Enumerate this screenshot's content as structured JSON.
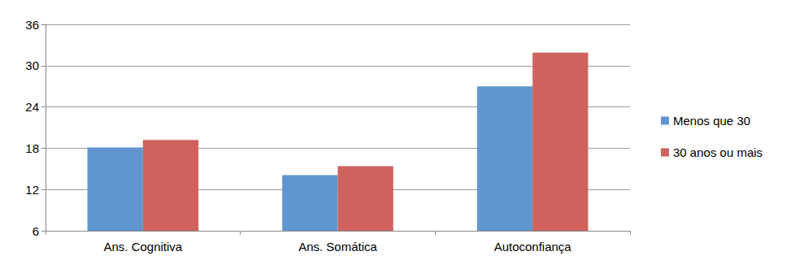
{
  "chart_data": {
    "type": "bar",
    "categories": [
      "Ans. Cognitiva",
      "Ans. Somática",
      "Autoconfiança"
    ],
    "series": [
      {
        "name": "Menos que 30",
        "color": "#6096d0",
        "values": [
          18.1,
          14.1,
          27.0
        ]
      },
      {
        "name": "30 anos ou mais",
        "color": "#d0635e",
        "values": [
          19.2,
          15.4,
          31.9
        ]
      }
    ],
    "ylim": [
      6,
      36
    ],
    "yticks": [
      6,
      12,
      18,
      24,
      30,
      36
    ],
    "grid": true,
    "legend": "right"
  }
}
